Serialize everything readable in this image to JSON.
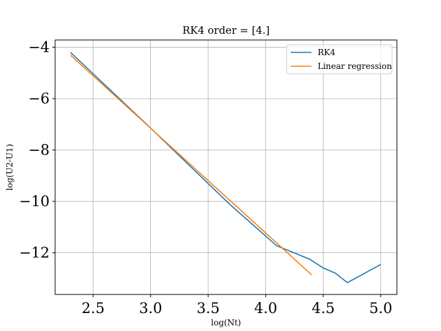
{
  "chart_data": {
    "type": "line",
    "title": "RK4 order = [4.]",
    "xlabel": "log(Nt)",
    "ylabel": "log(U2-U1)",
    "xlim": [
      2.17,
      5.14
    ],
    "ylim": [
      -13.62,
      -3.72
    ],
    "grid": true,
    "legend_position": "top-right",
    "xticks": [
      2.5,
      3.0,
      3.5,
      4.0,
      4.5,
      5.0
    ],
    "xtick_labels": [
      "2.5",
      "3.0",
      "3.5",
      "4.0",
      "4.5",
      "5.0"
    ],
    "yticks": [
      -4,
      -6,
      -8,
      -10,
      -12
    ],
    "ytick_labels": [
      "−4",
      "−6",
      "−8",
      "−10",
      "−12"
    ],
    "series": [
      {
        "name": "RK4",
        "color": "#1f77b4",
        "x": [
          2.303,
          2.996,
          3.689,
          4.094,
          4.382,
          4.5,
          4.605,
          4.71,
          5.0
        ],
        "y": [
          -4.2,
          -7.13,
          -10.12,
          -11.72,
          -12.25,
          -12.59,
          -12.79,
          -13.16,
          -12.45
        ]
      },
      {
        "name": "Linear regression",
        "color": "#ff7f0e",
        "x": [
          2.303,
          4.4
        ],
        "y": [
          -4.31,
          -12.86
        ]
      }
    ]
  }
}
